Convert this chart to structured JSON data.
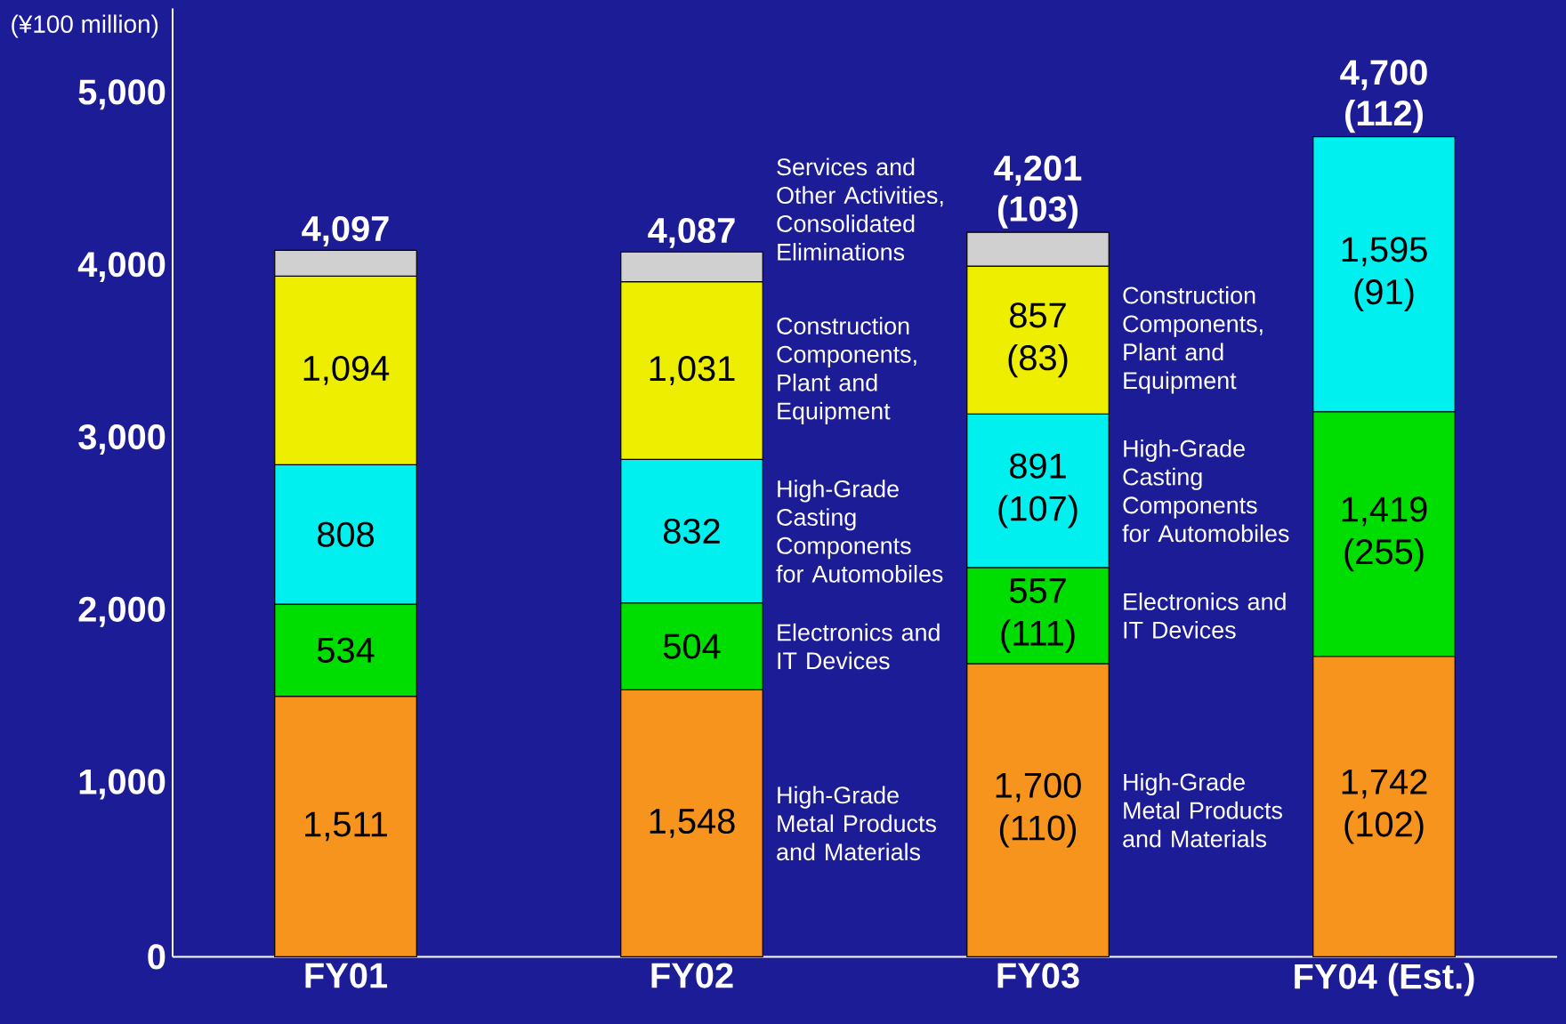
{
  "chart_data": {
    "type": "bar",
    "stacked": true,
    "ylabel": "(¥100 million)",
    "categories": [
      "FY01",
      "FY02",
      "FY03",
      "FY04 (Est.)"
    ],
    "ylim": [
      0,
      5500
    ],
    "yticks": [
      0,
      {
        "value": 1000,
        "label": "1,000"
      },
      {
        "value": 2000,
        "label": "2,000"
      },
      {
        "value": 3000,
        "label": "3,000"
      },
      {
        "value": 4000,
        "label": "4,000"
      },
      {
        "value": 5000,
        "label": "5,000"
      }
    ],
    "series": [
      {
        "name": "High-Grade Metal Products and Materials",
        "color": "#f7941d",
        "values": [
          1511,
          1548,
          1700,
          1742
        ],
        "value_labels": [
          "1,511",
          "1,548",
          "1,700 (110)",
          "1,742 (102)"
        ]
      },
      {
        "name": "Electronics and IT Devices",
        "color": "#00dd00",
        "values": [
          534,
          504,
          557,
          1419
        ],
        "value_labels": [
          "534",
          "504",
          "557 (111)",
          "1,419 (255)"
        ]
      },
      {
        "name": "High-Grade Casting Components for Automobiles",
        "color": "#00f0f0",
        "values": [
          808,
          832,
          891,
          1595
        ],
        "value_labels": [
          "808",
          "832",
          "891 (107)",
          "1,595 (91)"
        ]
      },
      {
        "name": "Construction Components, Plant and Equipment",
        "color": "#eeee00",
        "values": [
          1094,
          1031,
          857,
          null
        ],
        "value_labels": [
          "1,094",
          "1,031",
          "857 (83)",
          null
        ]
      },
      {
        "name": "Services and Other Activities, Consolidated Eliminations",
        "color": "#d0d0d0",
        "values": [
          150,
          172,
          196,
          null
        ]
      }
    ],
    "totals": [
      "4,097",
      "4,087",
      "4,201 (103)",
      "4,700 (112)"
    ]
  }
}
